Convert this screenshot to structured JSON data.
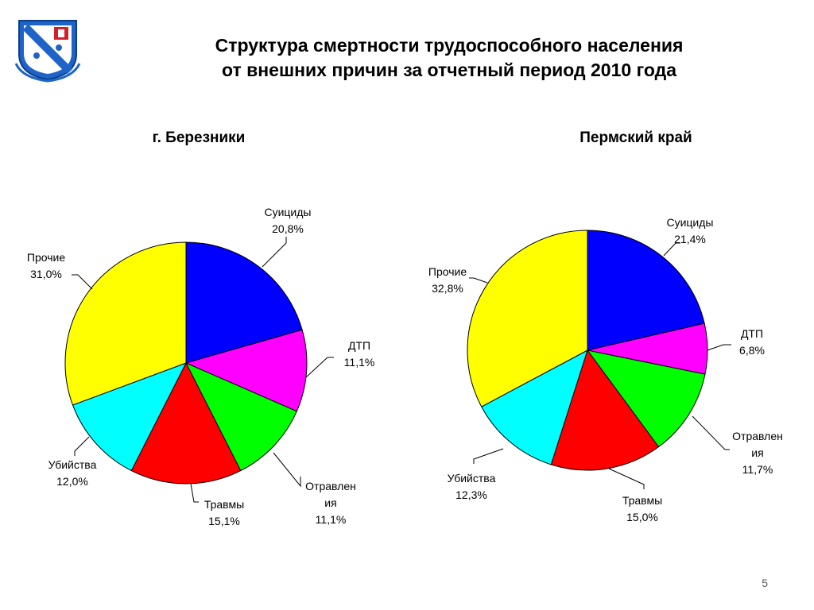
{
  "slide": {
    "title_line1": "Структура смертности трудоспособного населения",
    "title_line2": "от внешних причин за отчетный период 2010 года",
    "page_number": "5"
  },
  "colors": {
    "blue": "#0000FF",
    "magenta": "#FF00FF",
    "green": "#00FF00",
    "red": "#FF0000",
    "cyan": "#00FFFF",
    "yellow": "#FFFF00",
    "logo_blue": "#1E64C8"
  },
  "chart_data": [
    {
      "type": "pie",
      "title": "г. Березники",
      "slices": [
        {
          "label": "Суициды",
          "value": 20.8,
          "value_label": "20,8%",
          "color": "#0000FF"
        },
        {
          "label": "ДТП",
          "value": 11.1,
          "value_label": "11,1%",
          "color": "#FF00FF"
        },
        {
          "label": "Отравления",
          "value": 11.1,
          "value_label": "11,1%",
          "color": "#00FF00"
        },
        {
          "label": "Травмы",
          "value": 15.1,
          "value_label": "15,1%",
          "color": "#FF0000"
        },
        {
          "label": "Убийства",
          "value": 12.0,
          "value_label": "12,0%",
          "color": "#00FFFF"
        },
        {
          "label": "Прочие",
          "value": 31.0,
          "value_label": "31,0%",
          "color": "#FFFF00"
        }
      ]
    },
    {
      "type": "pie",
      "title": "Пермский край",
      "slices": [
        {
          "label": "Суициды",
          "value": 21.4,
          "value_label": "21,4%",
          "color": "#0000FF"
        },
        {
          "label": "ДТП",
          "value": 6.8,
          "value_label": "6,8%",
          "color": "#FF00FF"
        },
        {
          "label": "Отравления",
          "value": 11.7,
          "value_label": "11,7%",
          "color": "#00FF00"
        },
        {
          "label": "Травмы",
          "value": 15.0,
          "value_label": "15,0%",
          "color": "#FF0000"
        },
        {
          "label": "Убийства",
          "value": 12.3,
          "value_label": "12,3%",
          "color": "#00FFFF"
        },
        {
          "label": "Прочие",
          "value": 32.8,
          "value_label": "32,8%",
          "color": "#FFFF00"
        }
      ]
    }
  ]
}
